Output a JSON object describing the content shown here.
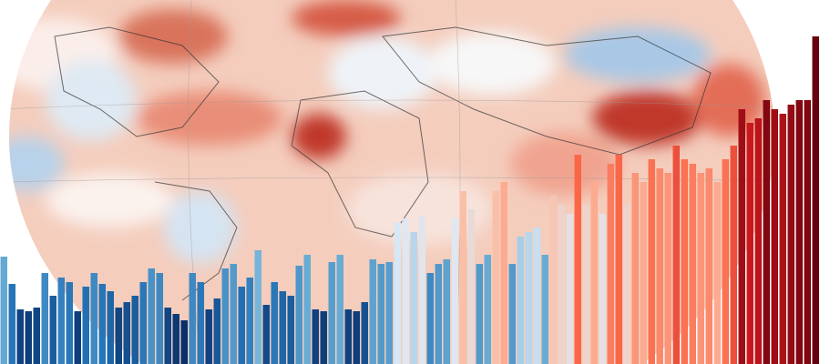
{
  "chart_data": {
    "type": "bar",
    "values": [
      118,
      88,
      60,
      58,
      62,
      100,
      75,
      95,
      90,
      58,
      85,
      100,
      88,
      80,
      62,
      68,
      75,
      90,
      105,
      100,
      62,
      55,
      48,
      100,
      90,
      60,
      72,
      105,
      110,
      85,
      95,
      125,
      65,
      90,
      80,
      75,
      108,
      120,
      60,
      58,
      112,
      120,
      60,
      58,
      68,
      115,
      110,
      112,
      155,
      160,
      145,
      162,
      100,
      110,
      115,
      160,
      190,
      170,
      110,
      120,
      190,
      200,
      110,
      140,
      145,
      150,
      120,
      185,
      175,
      165,
      230,
      175,
      200,
      165,
      220,
      230,
      175,
      210,
      200,
      225,
      215,
      210,
      240,
      225,
      220,
      210,
      215,
      200,
      225,
      240,
      280,
      265,
      270,
      290,
      280,
      275,
      285,
      290,
      290,
      360
    ],
    "ylim": [
      0,
      400
    ],
    "color_scale": [
      "#08306b",
      "#2171b5",
      "#6baed6",
      "#deebf7",
      "#fcbba1",
      "#fb6a4a",
      "#cb181d",
      "#67000d"
    ],
    "color_domain": [
      50,
      300
    ]
  }
}
